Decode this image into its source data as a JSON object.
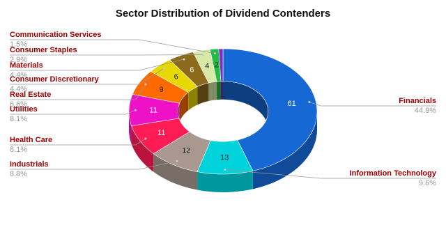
{
  "chart_data": {
    "type": "donut3d",
    "title": "Sector Distribution of Dividend Contenders",
    "categories": [
      "Financials",
      "Information Technology",
      "Industrials",
      "Health Care",
      "Utilities",
      "Real Estate",
      "Consumer Discretionary",
      "Materials",
      "Consumer Staples",
      "Communication Services",
      null
    ],
    "values": [
      61,
      13,
      12,
      11,
      11,
      9,
      6,
      6,
      4,
      2,
      1
    ],
    "percent_labels": [
      "44.9%",
      "9.6%",
      "8.8%",
      "8.1%",
      "8.1%",
      "6.6%",
      "4.4%",
      "4.4%",
      "2.9%",
      "1.5%",
      null
    ],
    "colors": [
      "#1668d4",
      "#00d3dc",
      "#a89890",
      "#ff1c55",
      "#ee12c6",
      "#ff6a00",
      "#e6d800",
      "#8c6a1c",
      "#d8e8a6",
      "#22bb44",
      "#7a2fc0"
    ]
  }
}
